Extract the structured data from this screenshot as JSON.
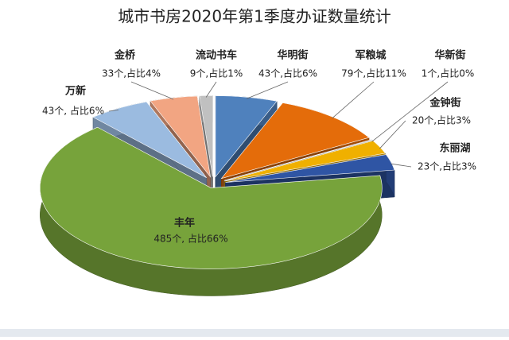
{
  "chart_data": {
    "type": "pie3d",
    "title": "城市书房2020年第1季度办证数量统计",
    "categories": [
      "华明街",
      "军粮城",
      "华新街",
      "金钟街",
      "东丽湖",
      "丰年",
      "万新",
      "金桥",
      "流动书车"
    ],
    "values": [
      43,
      79,
      1,
      20,
      23,
      485,
      43,
      33,
      9
    ],
    "value_labels": [
      "43个,占比6%",
      "79个,占比11%",
      "1个,占比0%",
      "20个,占比3%",
      "23个,占比3%",
      "485个, 占比66%",
      "43个, 占比6%",
      "33个,占比4%",
      "9个,占比1%"
    ],
    "colors": [
      "#4f81bd",
      "#e46c0a",
      "#a6a6a6",
      "#f0b000",
      "#2f55a4",
      "#77a33b",
      "#9bbbe0",
      "#f2a582",
      "#c0c0c0"
    ]
  }
}
